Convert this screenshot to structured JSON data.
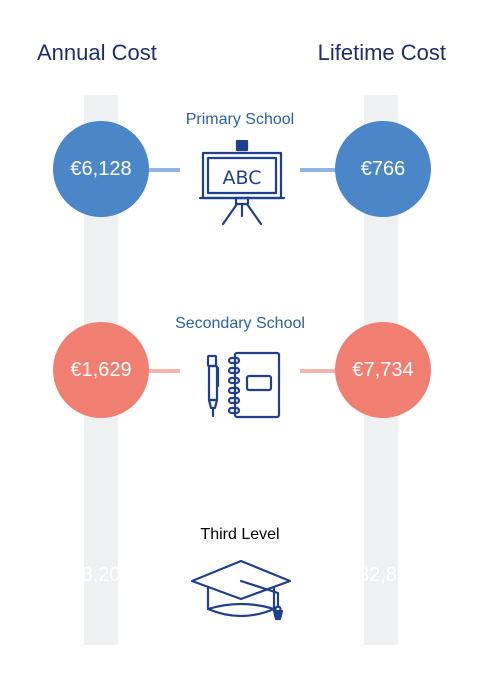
{
  "headers": {
    "annual": "Annual Cost",
    "lifetime": "Lifetime Cost"
  },
  "colors": {
    "header_text": "#1f2d6b",
    "label_text": "#2a5fa8",
    "icon_stroke": "#1f3f8f",
    "track": "#eef0f1"
  },
  "sections": [
    {
      "label": "Primary School",
      "annual": "€6,128",
      "lifetime": "€766",
      "color": "#4a86c8",
      "connector_color": "#93b4de",
      "icon": "chalkboard-abc-icon",
      "board_text": "ABC"
    },
    {
      "label": "Secondary School",
      "annual": "€1,629",
      "lifetime": "€7,734",
      "color": "#17b3a8",
      "connector_color": "#8ad6cf",
      "icon": "notebook-pen-icon"
    },
    {
      "label": "Third Level",
      "annual": "€8,206",
      "lifetime": "€32,824",
      "color": "#f07f72",
      "connector_color": "#f2b5ad",
      "icon": "graduation-cap-icon"
    }
  ]
}
